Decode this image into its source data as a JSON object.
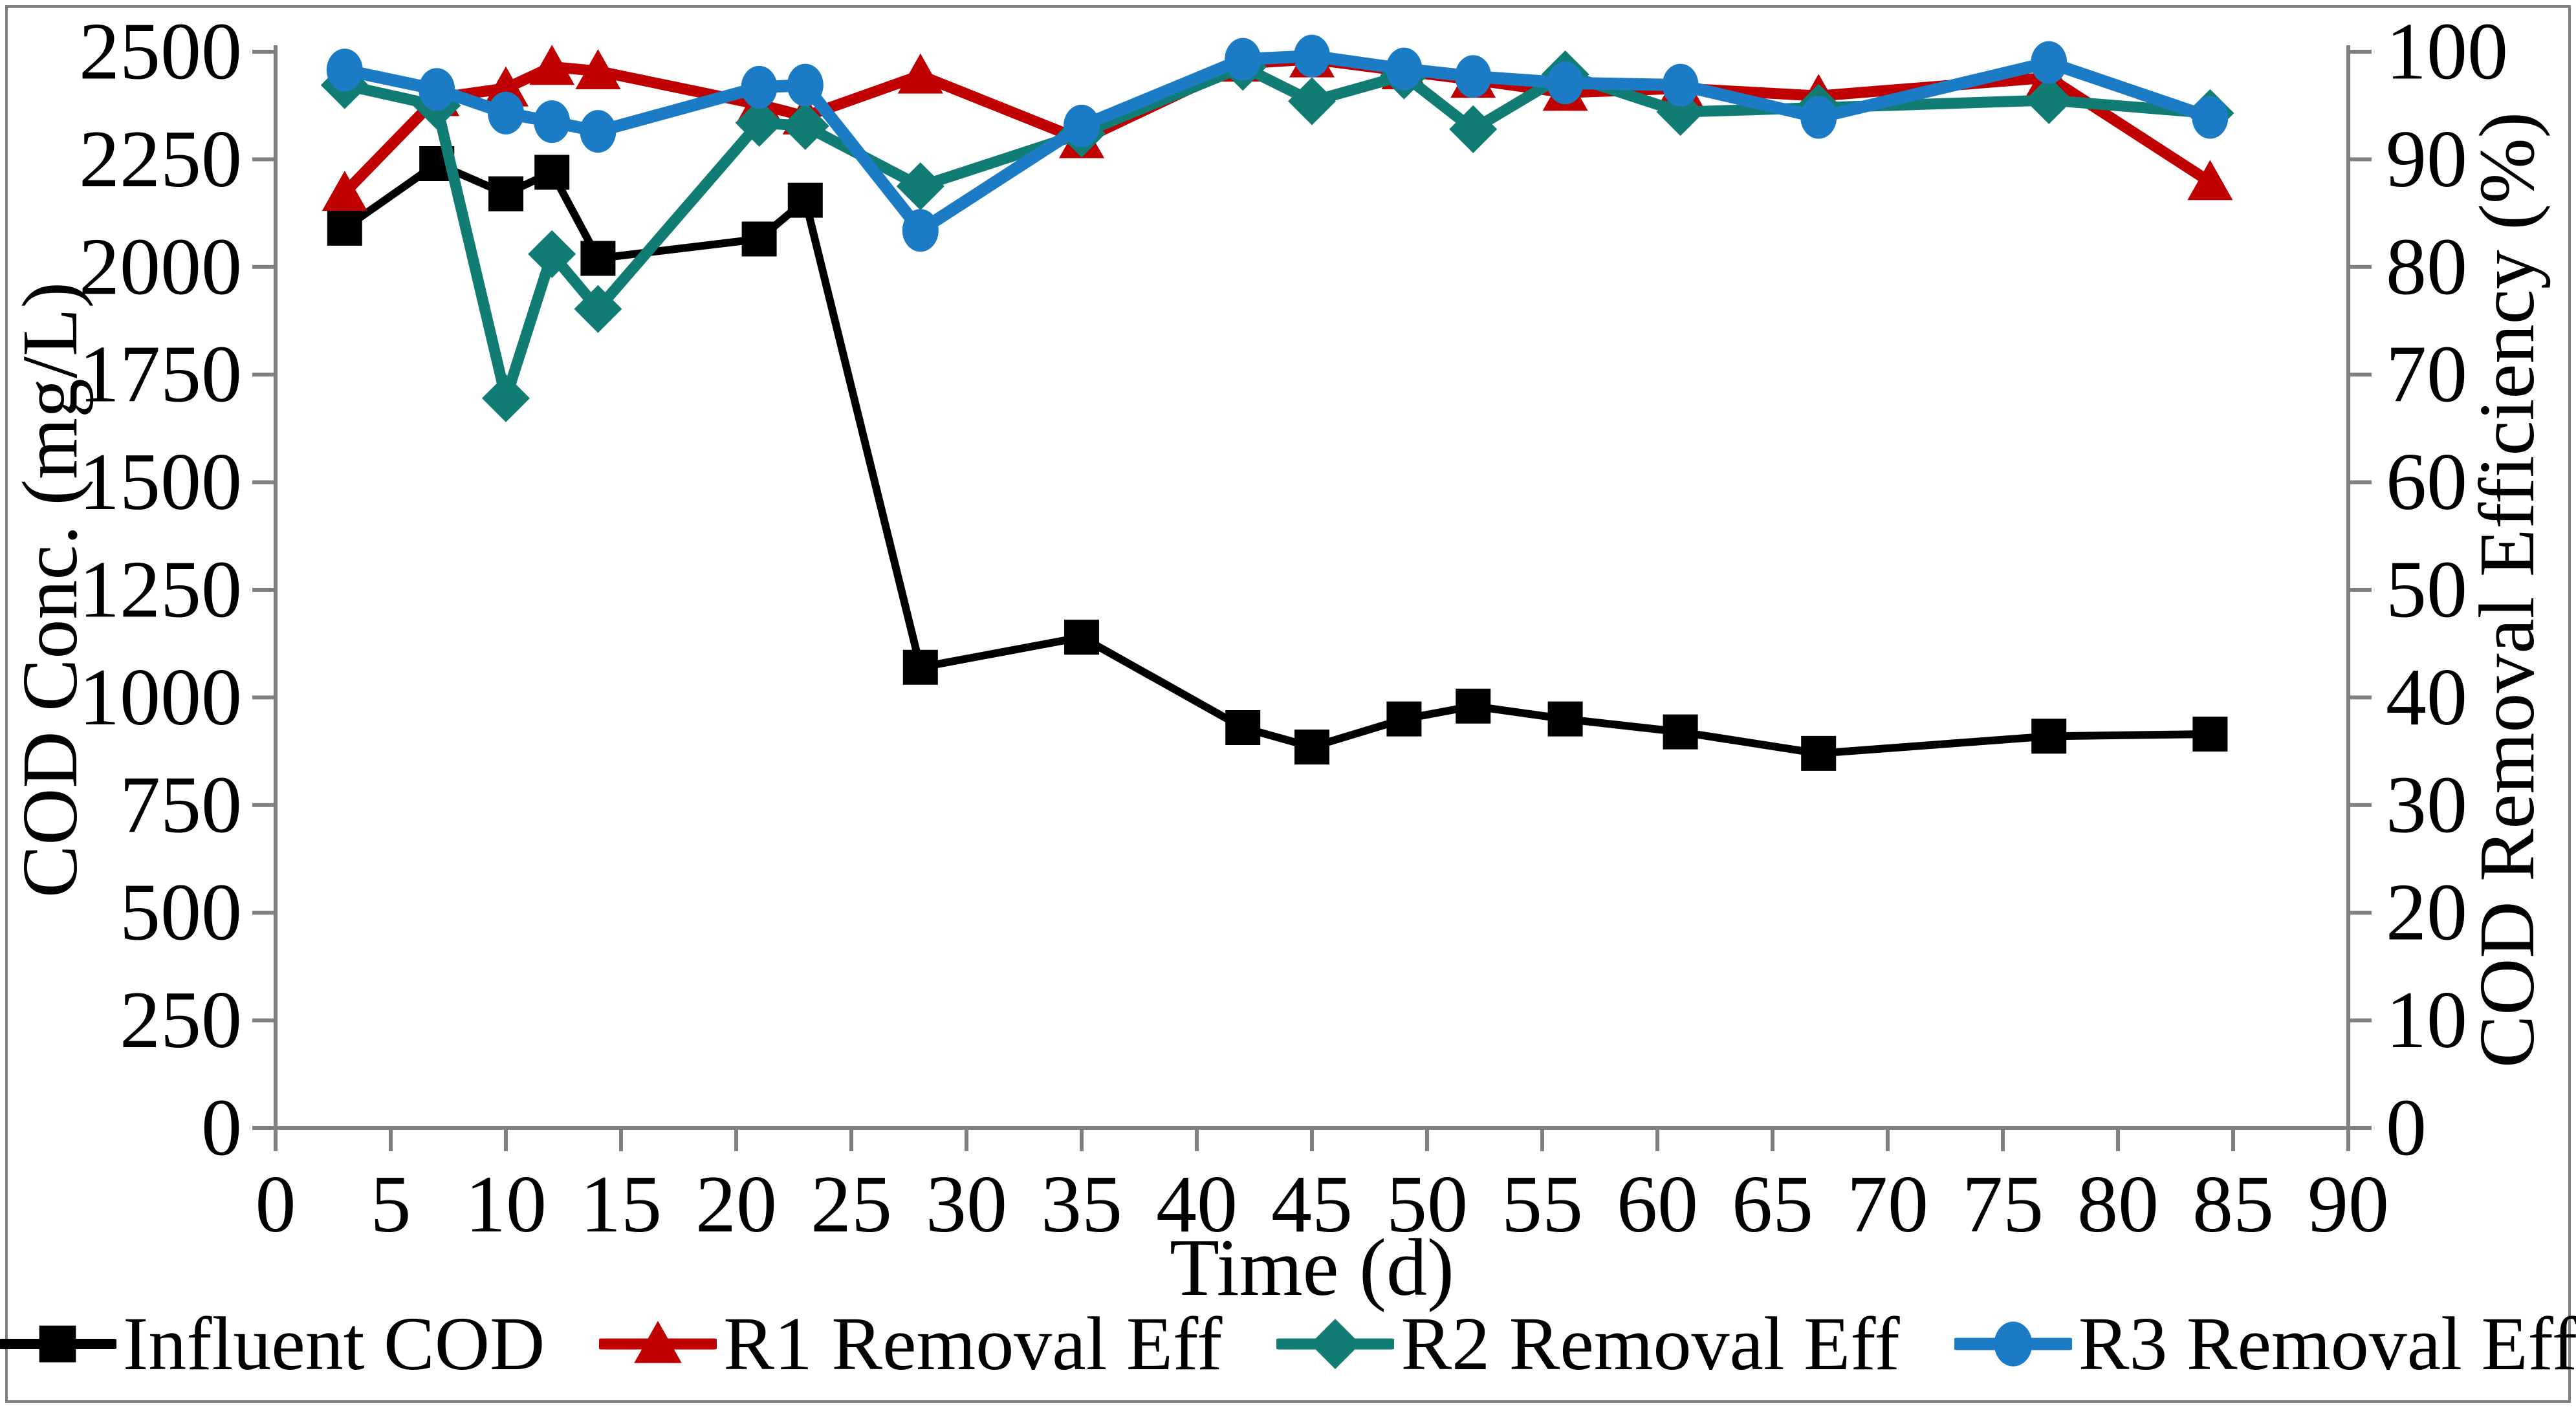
{
  "figure": {
    "background_color": "#FFFFFF",
    "border_color": "#808080",
    "axis_color": "#808080"
  },
  "axes": {
    "left": {
      "title": "COD Conc. (mg/L)",
      "range": [
        0,
        2500
      ],
      "ticks": [
        0,
        250,
        500,
        750,
        1000,
        1250,
        1500,
        1750,
        2000,
        2250,
        2500
      ]
    },
    "right": {
      "title": "COD Removal Efficiency (%)",
      "range": [
        0,
        100
      ],
      "ticks": [
        0,
        10,
        20,
        30,
        40,
        50,
        60,
        70,
        80,
        90,
        100
      ]
    },
    "x": {
      "title": "Time (d)",
      "range": [
        0,
        90
      ],
      "ticks": [
        0,
        5,
        10,
        15,
        20,
        25,
        30,
        35,
        40,
        45,
        50,
        55,
        60,
        65,
        70,
        75,
        80,
        85,
        90
      ]
    }
  },
  "chart_data": {
    "type": "line",
    "title": "",
    "grid": false,
    "legend_position": "bottom",
    "x": [
      3,
      7,
      10,
      12,
      14,
      21,
      23,
      28,
      35,
      42,
      45,
      49,
      52,
      56,
      61,
      67,
      77,
      84
    ],
    "series": [
      {
        "name": "Influent COD",
        "axis": "left",
        "color": "#000000",
        "marker": "square",
        "line_width": 12,
        "values": [
          2090,
          2240,
          2170,
          2220,
          2020,
          2065,
          2155,
          1070,
          1140,
          930,
          885,
          950,
          980,
          950,
          920,
          870,
          910,
          915
        ]
      },
      {
        "name": "R1 Removal Eff",
        "axis": "right",
        "color": "#C00000",
        "marker": "triangle",
        "line_width": 17,
        "values": [
          86.9,
          95.7,
          96.6,
          98.6,
          98.2,
          95.1,
          94.0,
          97.8,
          91.8,
          98.9,
          99.3,
          98.2,
          97.4,
          96.2,
          96.6,
          95.9,
          97.6,
          87.9
        ]
      },
      {
        "name": "R2 Removal Eff",
        "axis": "right",
        "color": "#117C73",
        "marker": "diamond",
        "line_width": 17,
        "values": [
          96.9,
          95.0,
          67.8,
          81.2,
          76.1,
          93.4,
          93.1,
          87.5,
          92.4,
          98.6,
          95.4,
          97.8,
          92.8,
          97.9,
          94.4,
          94.8,
          95.5,
          94.3
        ]
      },
      {
        "name": "R3 Removal Eff",
        "axis": "right",
        "color": "#1B7BC4",
        "marker": "circle",
        "line_width": 19,
        "values": [
          98.3,
          96.5,
          94.3,
          93.5,
          92.6,
          96.7,
          96.9,
          83.4,
          93.1,
          99.3,
          99.6,
          98.4,
          97.7,
          97.1,
          96.9,
          93.9,
          99.0,
          93.9
        ]
      }
    ]
  }
}
